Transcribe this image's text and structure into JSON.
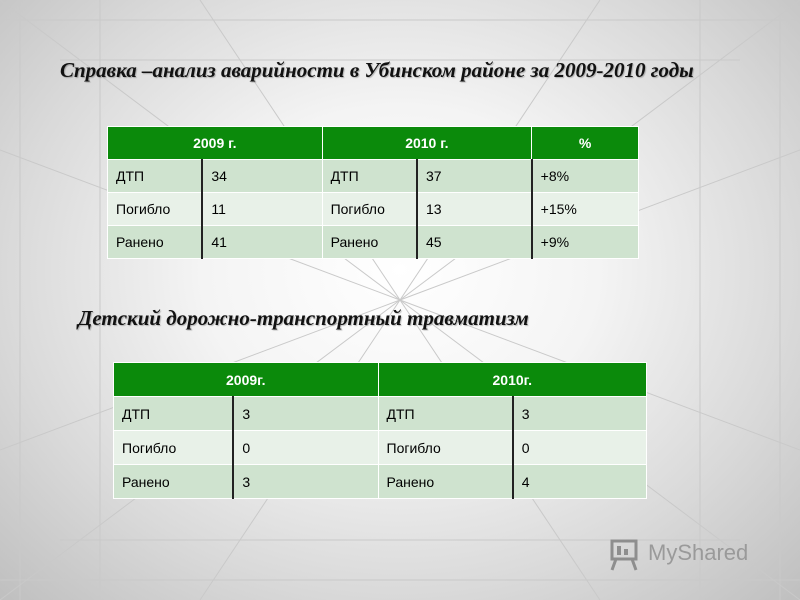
{
  "titles": {
    "main": "Справка –анализ аварийности в Убинском районе за 2009-2010 годы",
    "children": "Детский дорожно-транспортный травматизм"
  },
  "table1": {
    "headers": [
      "2009 г.",
      "2010 г.",
      "%"
    ],
    "rows": [
      [
        "ДТП",
        "34",
        "ДТП",
        "37",
        "+8%"
      ],
      [
        "Погибло",
        "11",
        "Погибло",
        "13",
        "+15%"
      ],
      [
        "Ранено",
        "41",
        "Ранено",
        "45",
        "+9%"
      ]
    ]
  },
  "table2": {
    "headers": [
      "2009г.",
      "2010г."
    ],
    "rows": [
      [
        "ДТП",
        "3",
        "ДТП",
        "3"
      ],
      [
        "Погибло",
        "0",
        "Погибло",
        "0"
      ],
      [
        "Ранено",
        "3",
        "Ранено",
        "4"
      ]
    ]
  },
  "logo": {
    "text": "MyShared"
  },
  "colors": {
    "header_green": "#0b8a0b",
    "row_light": "#e8f1e8",
    "row_mid": "#cfe3cf"
  }
}
